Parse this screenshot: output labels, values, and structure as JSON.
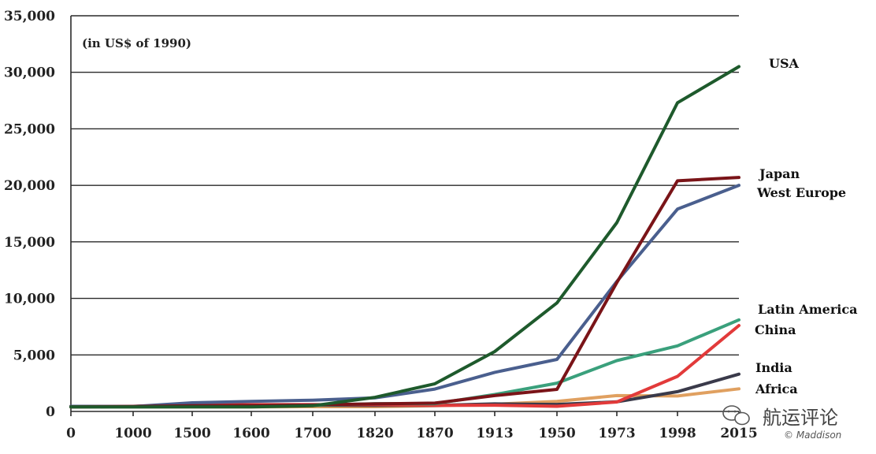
{
  "chart_data": {
    "type": "line",
    "title": "",
    "unit_note": "(in US$ of 1990)",
    "xlabel": "",
    "ylabel": "",
    "categories": [
      "0",
      "1000",
      "1500",
      "1600",
      "1700",
      "1820",
      "1870",
      "1913",
      "1950",
      "1973",
      "1998",
      "2015"
    ],
    "ylim": [
      0,
      35000
    ],
    "yticks": [
      0,
      5000,
      10000,
      15000,
      20000,
      25000,
      30000,
      35000
    ],
    "ytick_labels": [
      "0",
      "5,000",
      "10,000",
      "15,000",
      "20,000",
      "25,000",
      "30,000",
      "35,000"
    ],
    "grid": true,
    "series": [
      {
        "name": "USA",
        "color": "#1e5a2c",
        "values": [
          400,
          400,
          400,
          400,
          500,
          1250,
          2450,
          5300,
          9600,
          16700,
          27300,
          30500
        ]
      },
      {
        "name": "Japan",
        "color": "#7a1418",
        "values": [
          400,
          430,
          500,
          520,
          570,
          670,
          740,
          1400,
          1950,
          11400,
          20400,
          20700
        ]
      },
      {
        "name": "West Europe",
        "color": "#4a5f8e",
        "values": [
          450,
          430,
          770,
          890,
          1000,
          1200,
          1980,
          3460,
          4600,
          11500,
          17900,
          20000
        ]
      },
      {
        "name": "Latin America",
        "color": "#3aa07c",
        "values": [
          400,
          400,
          420,
          440,
          530,
          690,
          680,
          1500,
          2500,
          4500,
          5800,
          8100
        ]
      },
      {
        "name": "China",
        "color": "#e23a3a",
        "values": [
          450,
          450,
          600,
          600,
          600,
          600,
          530,
          550,
          450,
          840,
          3100,
          7600
        ]
      },
      {
        "name": "India",
        "color": "#3a3a4a",
        "values": [
          450,
          450,
          550,
          550,
          550,
          530,
          530,
          670,
          620,
          850,
          1750,
          3300
        ]
      },
      {
        "name": "Africa",
        "color": "#e0a060",
        "values": [
          400,
          400,
          400,
          400,
          420,
          420,
          500,
          640,
          890,
          1400,
          1370,
          2000
        ]
      }
    ]
  },
  "watermark": {
    "text": "航运评论",
    "sub": "© Maddison"
  }
}
